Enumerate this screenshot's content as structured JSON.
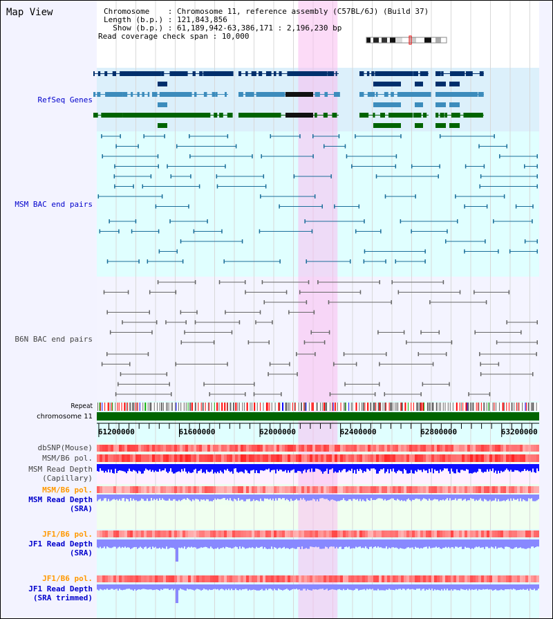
{
  "title": "Map View",
  "info": {
    "chromosome_label": "Chromosome    : ",
    "chromosome": "Chromosome 11, reference assembly (C57BL/6J) (Build 37)",
    "length_label": "Length (b.p.) : ",
    "length": "121,843,856",
    "show_label": "  Show (b.p.) : ",
    "show": "61,189,942-63,386,171 : 2,196,230 bp",
    "coverage_label": "Read coverage check span : ",
    "coverage": "10,000"
  },
  "tracks": {
    "refseq": "RefSeq Genes",
    "msm_bac": "MSM BAC end pairs",
    "b6n_bac": "B6N BAC end pairs",
    "repeat": "Repeat",
    "chromosome": "chromosome 11",
    "dbsnp": "dbSNP(Mouse)",
    "msm_pol": "MSM/B6 pol.",
    "msm_depth_cap_1": "MSM Read Depth",
    "msm_depth_cap_2": "(Capillary)",
    "msm_pol_sra": "MSM/B6 pol.",
    "msm_depth_sra_1": "MSM Read Depth",
    "msm_depth_sra_2": "(SRA)",
    "jf1_pol": "JF1/B6 pol.",
    "jf1_depth_1": "JF1 Read Depth",
    "jf1_depth_2": "(SRA)",
    "jf1_pol_2": "JF1/B6 pol.",
    "jf1_depth_trim_1": "JF1 Read Depth",
    "jf1_depth_trim_2": "(SRA trimmed)"
  },
  "axis": {
    "start": 61189942,
    "end": 63386171,
    "ticks": [
      "61200000",
      "61600000",
      "62000000",
      "62400000",
      "62800000",
      "63200000"
    ]
  },
  "highlight": {
    "start": 62190000,
    "end": 62385000
  },
  "colors": {
    "gene_dark": "#002f6c",
    "gene_mid": "#3c8cbc",
    "gene_green": "#006400",
    "msm_bac": "#1a6e9a",
    "b6n_bac": "#666666",
    "chrom": "#006400",
    "depth": "#1010ff",
    "depth_sra": "#8888ff",
    "orange": "#ff9900",
    "blue_label": "#0000cc"
  }
}
